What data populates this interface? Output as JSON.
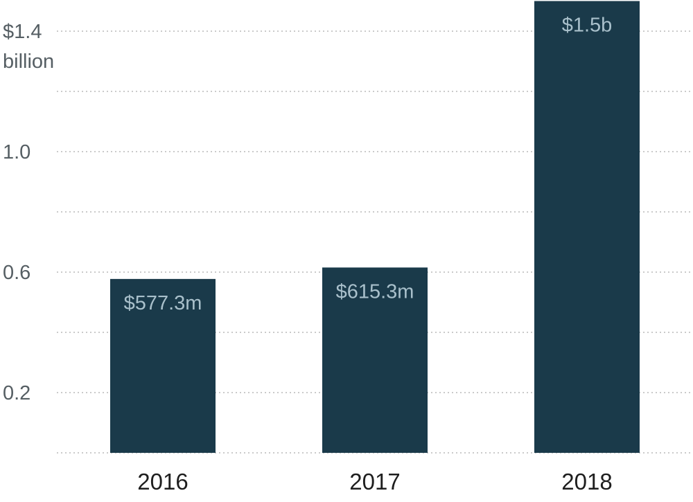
{
  "chart_data": {
    "type": "bar",
    "categories": [
      "2016",
      "2017",
      "2018"
    ],
    "values": [
      0.5773,
      0.6153,
      1.5
    ],
    "data_labels": [
      "$577.3m",
      "$615.3m",
      "$1.5b"
    ],
    "ylim": [
      0,
      1.5
    ],
    "yticks": [
      {
        "value": 0.2,
        "label": "0.2"
      },
      {
        "value": 0.6,
        "label": "0.6"
      },
      {
        "value": 1.0,
        "label": "1.0"
      },
      {
        "value": 1.4,
        "label": "$1.4"
      }
    ],
    "yunit_label": "billion",
    "gridlines": [
      0,
      0.2,
      0.4,
      0.6,
      0.8,
      1.0,
      1.2,
      1.4
    ],
    "grid": true,
    "bar_color": "#1a3a4a",
    "label_color": "#a9c0cb"
  }
}
